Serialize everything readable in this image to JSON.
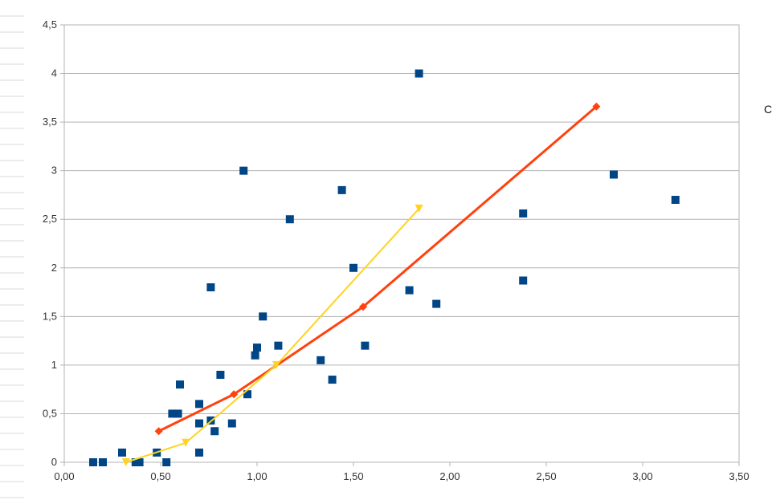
{
  "side_label": "C",
  "chart_data": {
    "type": "scatter",
    "title": "",
    "xlabel": "",
    "ylabel": "",
    "xlim": [
      0,
      3.5
    ],
    "ylim": [
      0,
      4.5
    ],
    "x_ticks": [
      "0,00",
      "0,50",
      "1,00",
      "1,50",
      "2,00",
      "2,50",
      "3,00",
      "3,50"
    ],
    "y_ticks": [
      "0",
      "0,5",
      "1",
      "1,5",
      "2",
      "2,5",
      "3",
      "3,5",
      "4",
      "4,5"
    ],
    "grid": "horizontal",
    "legend": "none",
    "series": [
      {
        "kind": "scatter",
        "color": "#004586",
        "marker": "square",
        "points": [
          [
            0.15,
            0
          ],
          [
            0.2,
            0
          ],
          [
            0.3,
            0.1
          ],
          [
            0.37,
            0
          ],
          [
            0.39,
            0
          ],
          [
            0.48,
            0.1
          ],
          [
            0.53,
            0
          ],
          [
            0.56,
            0.5
          ],
          [
            0.59,
            0.5
          ],
          [
            0.6,
            0.8
          ],
          [
            0.7,
            0.6
          ],
          [
            0.7,
            0.4
          ],
          [
            0.7,
            0.1
          ],
          [
            0.76,
            0.43
          ],
          [
            0.76,
            1.8
          ],
          [
            0.78,
            0.32
          ],
          [
            0.81,
            0.9
          ],
          [
            0.87,
            0.4
          ],
          [
            0.93,
            3.0
          ],
          [
            0.95,
            0.7
          ],
          [
            0.99,
            1.1
          ],
          [
            1.0,
            1.18
          ],
          [
            1.03,
            1.5
          ],
          [
            1.11,
            1.2
          ],
          [
            1.17,
            2.5
          ],
          [
            1.33,
            1.05
          ],
          [
            1.39,
            0.85
          ],
          [
            1.44,
            2.8
          ],
          [
            1.5,
            2.0
          ],
          [
            1.56,
            1.2
          ],
          [
            1.79,
            1.77
          ],
          [
            1.84,
            4.0
          ],
          [
            1.93,
            1.63
          ],
          [
            2.38,
            2.56
          ],
          [
            2.38,
            1.87
          ],
          [
            2.85,
            2.96
          ],
          [
            3.17,
            2.7
          ]
        ]
      },
      {
        "kind": "line",
        "color": "#ff420e",
        "marker": "diamond",
        "points": [
          [
            0.49,
            0.32
          ],
          [
            0.88,
            0.7
          ],
          [
            1.55,
            1.6
          ],
          [
            2.76,
            3.66
          ]
        ]
      },
      {
        "kind": "line",
        "color": "#ffd320",
        "marker": "triangle-down",
        "points": [
          [
            0.32,
            0.0
          ],
          [
            0.63,
            0.2
          ],
          [
            1.1,
            1.0
          ],
          [
            1.84,
            2.61
          ]
        ]
      }
    ]
  }
}
